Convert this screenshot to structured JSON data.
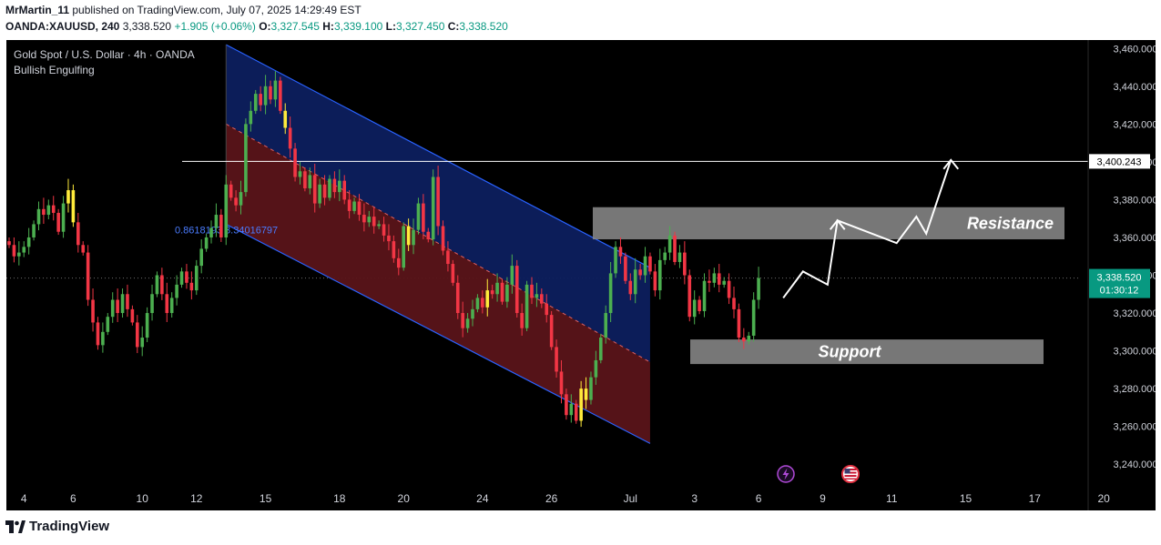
{
  "header": {
    "author": "MrMartin_11",
    "published": "published on TradingView.com, July 07, 2025 14:29:49 EST",
    "symbol": "OANDA:XAUUSD, 240",
    "last": "3,338.520",
    "change": "+1.905 (+0.06%)",
    "o_label": "O:",
    "o": "3,327.545",
    "h_label": "H:",
    "h": "3,339.100",
    "l_label": "L:",
    "l": "3,327.450",
    "c_label": "C:",
    "c": "3,338.520"
  },
  "legend": {
    "title": "Gold Spot / U.S. Dollar · 4h · OANDA",
    "indicator": "Bullish Engulfing"
  },
  "annotations": {
    "fib_label": "0.8618193 3.34016797",
    "resistance": "Resistance",
    "support": "Support",
    "level_label": "3,400.243",
    "price_label": "3,338.520",
    "countdown": "01:30:12"
  },
  "footer": {
    "brand": "TradingView"
  },
  "colors": {
    "background": "#000000",
    "up": "#4caf50",
    "down": "#f23645",
    "highlight": "#ffeb3b",
    "channel_upper": "#0d1f5e",
    "channel_lower": "#5a1419",
    "channel_line": "#2962ff",
    "zone": "#8c8c8c",
    "price_badge": "#089981"
  },
  "chart_data": {
    "type": "candlestick",
    "title": "Gold Spot / U.S. Dollar · 4h · OANDA",
    "ylim": [
      3230,
      3470
    ],
    "y_ticks": [
      "3,240.000",
      "3,260.000",
      "3,280.000",
      "3,300.000",
      "3,320.000",
      "3,340.000",
      "3,360.000",
      "3,380.000",
      "3,400.000",
      "3,420.000",
      "3,440.000",
      "3,460.000"
    ],
    "y_tick_values": [
      3240,
      3260,
      3280,
      3300,
      3320,
      3340,
      3360,
      3380,
      3400,
      3420,
      3440,
      3460
    ],
    "x_ticks": [
      "4",
      "6",
      "10",
      "12",
      "15",
      "18",
      "20",
      "24",
      "26",
      "Jul",
      "3",
      "6",
      "9",
      "11",
      "15",
      "17",
      "20"
    ],
    "x_tick_index": [
      3,
      13,
      27,
      38,
      52,
      67,
      80,
      96,
      110,
      126,
      139,
      152,
      165,
      179,
      194,
      208,
      222
    ],
    "resistance_zone": [
      3359,
      3376
    ],
    "support_zone": [
      3293,
      3306
    ],
    "horizontal_level": 3400.243,
    "current_price": 3338.52,
    "channel": {
      "start_index": 44,
      "end_index": 130,
      "upper_start": 3462,
      "upper_end": 3344,
      "mid_start": 3420,
      "mid_end": 3294,
      "lower_start": 3367,
      "lower_end": 3251
    },
    "projection": [
      [
        157,
        3328
      ],
      [
        161,
        3342
      ],
      [
        166,
        3335
      ],
      [
        168,
        3369
      ],
      [
        180,
        3357
      ],
      [
        184,
        3371
      ],
      [
        186,
        3362
      ],
      [
        191,
        3401
      ]
    ],
    "candles": [
      [
        3358,
        3356
      ],
      [
        3356,
        3350
      ],
      [
        3350,
        3352
      ],
      [
        3352,
        3355
      ],
      [
        3355,
        3360
      ],
      [
        3360,
        3367
      ],
      [
        3367,
        3375
      ],
      [
        3375,
        3372
      ],
      [
        3372,
        3377
      ],
      [
        3377,
        3373
      ],
      [
        3373,
        3363
      ],
      [
        3363,
        3378
      ],
      [
        3378,
        3385
      ],
      [
        3385,
        3368
      ],
      [
        3368,
        3356
      ],
      [
        3356,
        3352
      ],
      [
        3352,
        3327
      ],
      [
        3327,
        3315
      ],
      [
        3315,
        3303
      ],
      [
        3303,
        3310
      ],
      [
        3310,
        3318
      ],
      [
        3318,
        3327
      ],
      [
        3327,
        3320
      ],
      [
        3320,
        3330
      ],
      [
        3330,
        3322
      ],
      [
        3322,
        3315
      ],
      [
        3315,
        3302
      ],
      [
        3302,
        3307
      ],
      [
        3307,
        3320
      ],
      [
        3320,
        3330
      ],
      [
        3330,
        3340
      ],
      [
        3340,
        3330
      ],
      [
        3330,
        3320
      ],
      [
        3320,
        3328
      ],
      [
        3328,
        3335
      ],
      [
        3335,
        3342
      ],
      [
        3342,
        3336
      ],
      [
        3336,
        3332
      ],
      [
        3332,
        3345
      ],
      [
        3345,
        3354
      ],
      [
        3354,
        3360
      ],
      [
        3360,
        3365
      ],
      [
        3365,
        3372
      ],
      [
        3372,
        3360
      ],
      [
        3360,
        3388
      ],
      [
        3388,
        3381
      ],
      [
        3381,
        3377
      ],
      [
        3377,
        3384
      ],
      [
        3384,
        3420
      ],
      [
        3420,
        3427
      ],
      [
        3427,
        3436
      ],
      [
        3436,
        3430
      ],
      [
        3430,
        3440
      ],
      [
        3440,
        3433
      ],
      [
        3433,
        3443
      ],
      [
        3443,
        3427
      ],
      [
        3427,
        3418
      ],
      [
        3418,
        3407
      ],
      [
        3407,
        3392
      ],
      [
        3392,
        3395
      ],
      [
        3395,
        3386
      ],
      [
        3386,
        3393
      ],
      [
        3393,
        3378
      ],
      [
        3378,
        3388
      ],
      [
        3388,
        3381
      ],
      [
        3381,
        3391
      ],
      [
        3391,
        3384
      ],
      [
        3384,
        3390
      ],
      [
        3390,
        3380
      ],
      [
        3380,
        3374
      ],
      [
        3374,
        3379
      ],
      [
        3379,
        3372
      ],
      [
        3372,
        3368
      ],
      [
        3368,
        3371
      ],
      [
        3371,
        3366
      ],
      [
        3366,
        3367
      ],
      [
        3367,
        3361
      ],
      [
        3361,
        3358
      ],
      [
        3358,
        3349
      ],
      [
        3349,
        3344
      ],
      [
        3344,
        3366
      ],
      [
        3366,
        3356
      ],
      [
        3356,
        3364
      ],
      [
        3364,
        3378
      ],
      [
        3378,
        3363
      ],
      [
        3363,
        3359
      ],
      [
        3359,
        3392
      ],
      [
        3392,
        3366
      ],
      [
        3366,
        3353
      ],
      [
        3353,
        3346
      ],
      [
        3346,
        3336
      ],
      [
        3336,
        3320
      ],
      [
        3320,
        3312
      ],
      [
        3312,
        3317
      ],
      [
        3317,
        3322
      ],
      [
        3322,
        3328
      ],
      [
        3328,
        3323
      ],
      [
        3323,
        3332
      ],
      [
        3332,
        3330
      ],
      [
        3330,
        3336
      ],
      [
        3336,
        3326
      ],
      [
        3326,
        3335
      ],
      [
        3335,
        3345
      ],
      [
        3345,
        3320
      ],
      [
        3320,
        3312
      ],
      [
        3312,
        3335
      ],
      [
        3335,
        3328
      ],
      [
        3328,
        3330
      ],
      [
        3330,
        3325
      ],
      [
        3325,
        3319
      ],
      [
        3319,
        3302
      ],
      [
        3302,
        3289
      ],
      [
        3289,
        3277
      ],
      [
        3277,
        3266
      ],
      [
        3266,
        3272
      ],
      [
        3272,
        3263
      ],
      [
        3263,
        3280
      ],
      [
        3280,
        3274
      ],
      [
        3274,
        3286
      ],
      [
        3286,
        3295
      ],
      [
        3295,
        3307
      ],
      [
        3307,
        3320
      ],
      [
        3320,
        3341
      ],
      [
        3341,
        3355
      ],
      [
        3355,
        3350
      ],
      [
        3350,
        3337
      ],
      [
        3337,
        3330
      ],
      [
        3330,
        3343
      ],
      [
        3343,
        3340
      ],
      [
        3340,
        3350
      ],
      [
        3350,
        3342
      ],
      [
        3342,
        3332
      ],
      [
        3332,
        3348
      ],
      [
        3348,
        3352
      ],
      [
        3352,
        3361
      ],
      [
        3361,
        3347
      ],
      [
        3347,
        3352
      ],
      [
        3352,
        3340
      ],
      [
        3340,
        3318
      ],
      [
        3318,
        3327
      ],
      [
        3327,
        3321
      ],
      [
        3321,
        3337
      ],
      [
        3337,
        3336
      ],
      [
        3336,
        3341
      ],
      [
        3341,
        3335
      ],
      [
        3335,
        3337
      ],
      [
        3337,
        3328
      ],
      [
        3328,
        3322
      ],
      [
        3322,
        3307
      ],
      [
        3307,
        3305
      ],
      [
        3305,
        3308
      ],
      [
        3308,
        3327
      ],
      [
        3327,
        3338.52
      ]
    ],
    "highlight_candles": [
      12,
      13,
      56,
      81,
      97,
      116,
      117
    ]
  }
}
